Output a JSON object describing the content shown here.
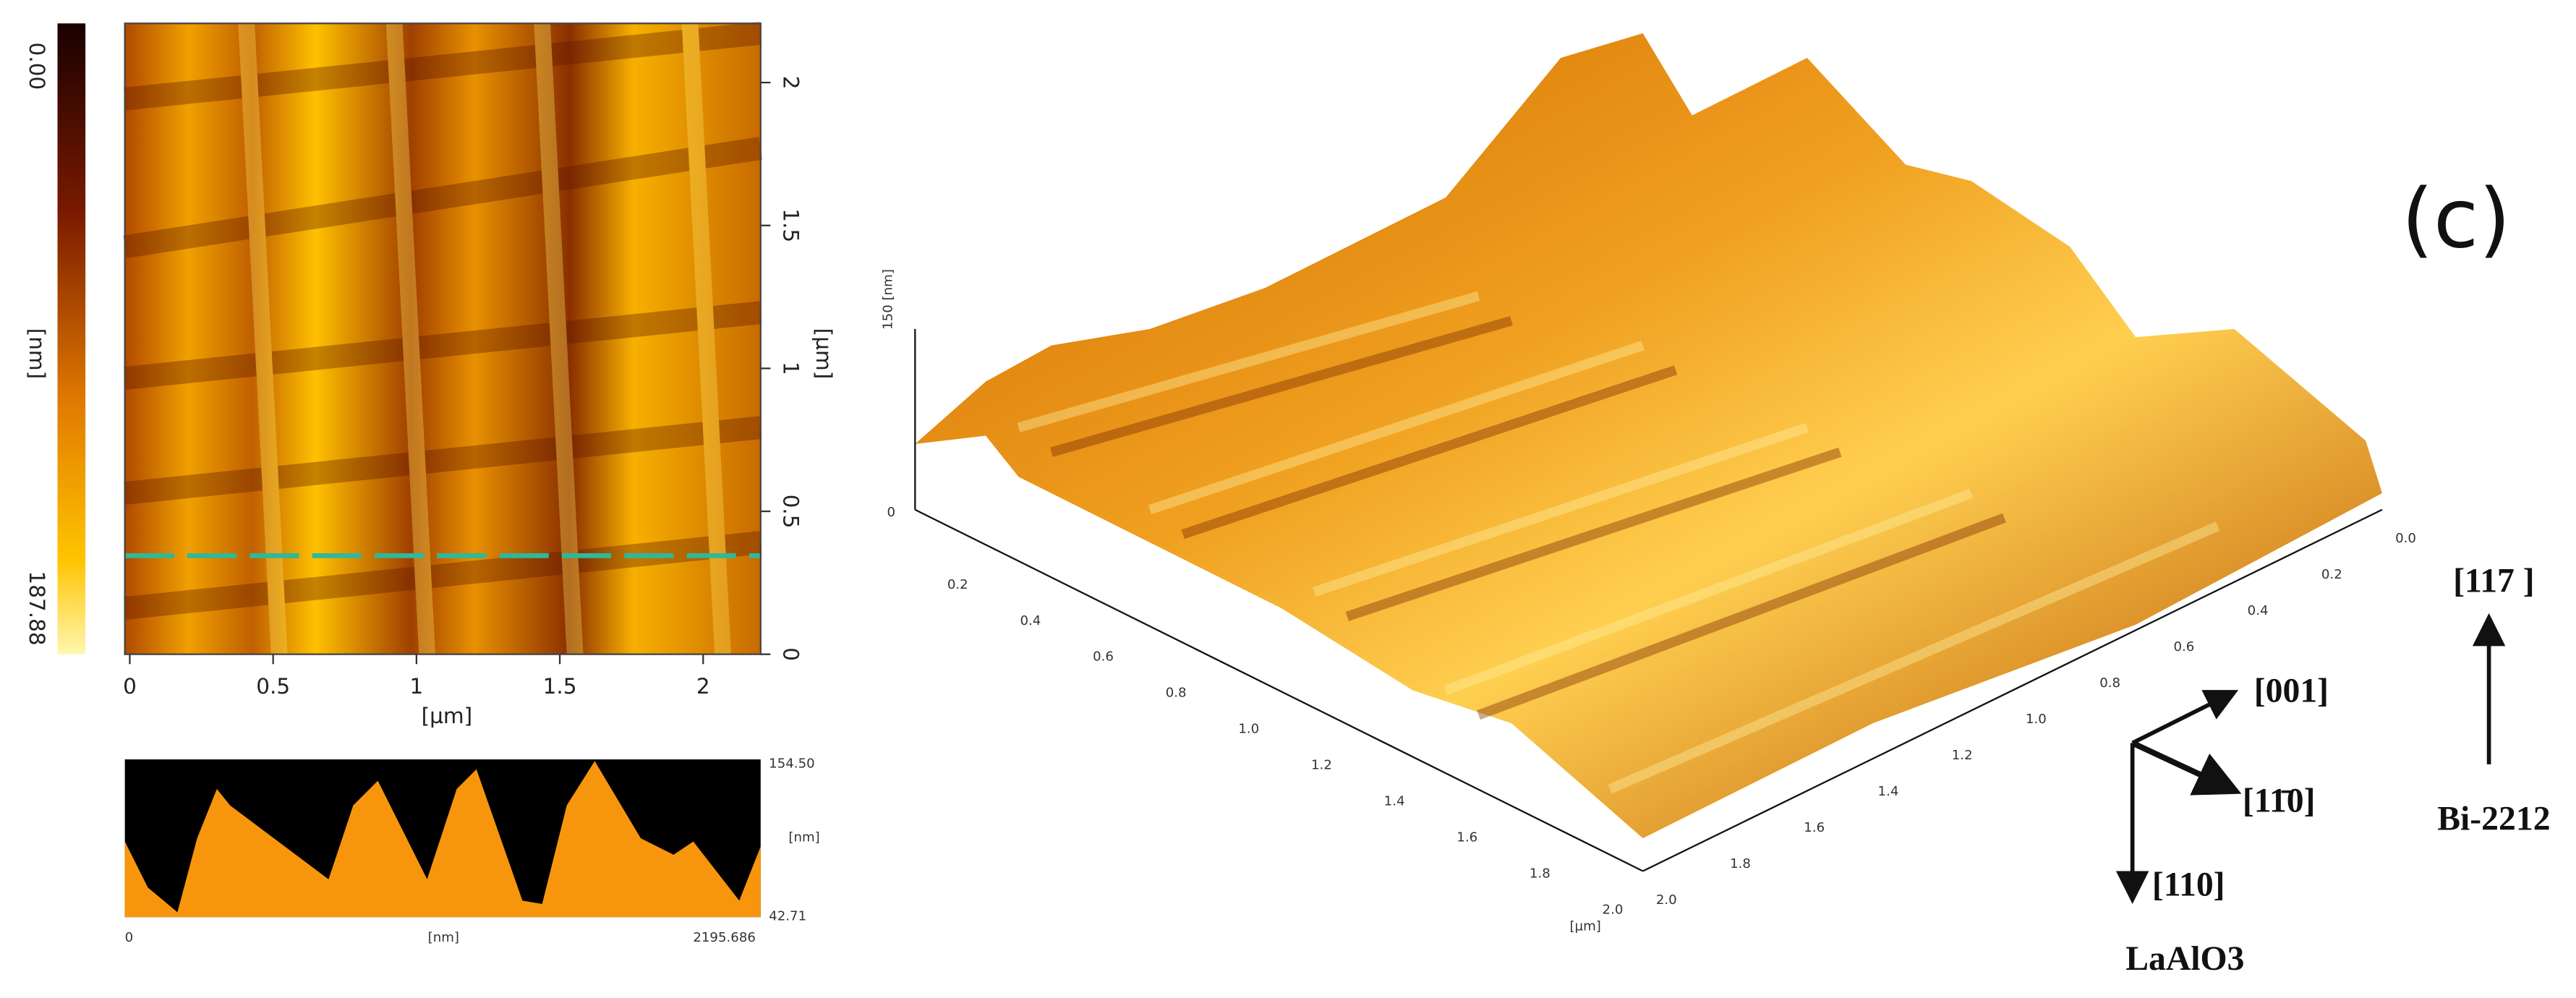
{
  "colorbar": {
    "top": "0.00",
    "unit": "[nm]",
    "bottom": "187.88"
  },
  "topography": {
    "xticks": [
      "0",
      "0.5",
      "1",
      "1.5",
      "2"
    ],
    "xlabel": "[µm]",
    "yticks": [
      "0",
      "0.5",
      "1",
      "1.5",
      "2"
    ],
    "ylabel": "[µm]"
  },
  "profile": {
    "right_top": "154.50",
    "right_unit": "[nm]",
    "right_bottom": "42.71",
    "bottom_left": "0",
    "bottom_unit": "[nm]",
    "bottom_right": "2195.686"
  },
  "surface3d": {
    "z_label": "150 [nm]",
    "z_zero": "0",
    "left_ticks": [
      "0.2",
      "0.4",
      "0.6",
      "0.8",
      "1.0",
      "1.2",
      "1.4",
      "1.6",
      "1.8",
      "2.0"
    ],
    "left_unit": "[µm]",
    "right_ticks": [
      "0.0",
      "0.2",
      "0.4",
      "0.6",
      "0.8",
      "1.0",
      "1.2",
      "1.4",
      "1.6",
      "1.8",
      "2.0"
    ]
  },
  "panel_label": "(c)",
  "directions": {
    "bi2212_dir": "[117 ]",
    "bi2212": "Bi-2212",
    "d001": "[001]",
    "d1m10": "[11̄0]",
    "d110": "[110]",
    "substrate": "LaAlO3"
  }
}
